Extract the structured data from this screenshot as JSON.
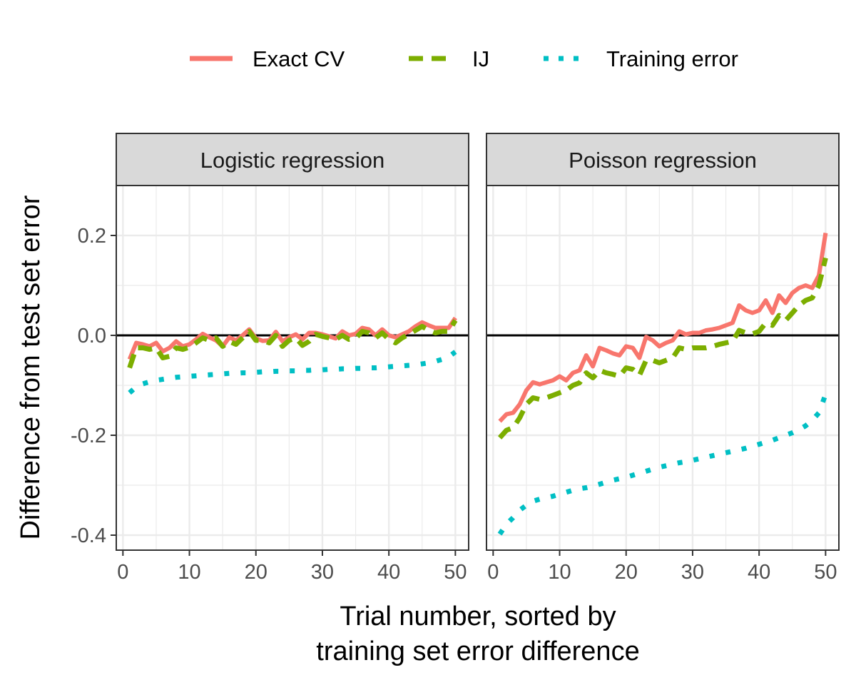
{
  "chart_data": {
    "type": "line",
    "xlabel_lines": [
      "Trial number, sorted by",
      "training set error difference"
    ],
    "ylabel": "Difference from test set error",
    "legend": {
      "placement": "top",
      "entries": [
        {
          "label": "Exact CV",
          "color": "#F8766D",
          "dash": "solid"
        },
        {
          "label": "IJ",
          "color": "#7CAE00",
          "dash": "dashed"
        },
        {
          "label": "Training error",
          "color": "#00BFC4",
          "dash": "dotted"
        }
      ]
    },
    "xlim": [
      -1,
      52
    ],
    "ylim": [
      -0.43,
      0.3
    ],
    "xticks": [
      0,
      10,
      20,
      30,
      40,
      50
    ],
    "yticks": [
      -0.4,
      -0.2,
      0.0,
      0.2
    ],
    "ytick_labels": [
      "-0.4",
      "-0.2",
      "0.0",
      "0.2"
    ],
    "hline": 0.0,
    "grid": true,
    "panels": [
      {
        "title": "Logistic regression",
        "x": [
          1,
          2,
          3,
          4,
          5,
          6,
          7,
          8,
          9,
          10,
          11,
          12,
          13,
          14,
          15,
          16,
          17,
          18,
          19,
          20,
          21,
          22,
          23,
          24,
          25,
          26,
          27,
          28,
          29,
          30,
          31,
          32,
          33,
          34,
          35,
          36,
          37,
          38,
          39,
          40,
          41,
          42,
          43,
          44,
          45,
          46,
          47,
          48,
          49,
          50
        ],
        "series": [
          {
            "name": "Exact CV",
            "values": [
              -0.048,
              -0.015,
              -0.018,
              -0.022,
              -0.015,
              -0.032,
              -0.025,
              -0.012,
              -0.022,
              -0.018,
              -0.008,
              0.003,
              -0.004,
              -0.01,
              -0.022,
              -0.004,
              -0.01,
              0.0,
              0.012,
              -0.006,
              -0.011,
              -0.01,
              0.007,
              -0.012,
              -0.004,
              0.002,
              -0.008,
              0.005,
              0.005,
              0.002,
              -0.002,
              -0.006,
              0.008,
              0.0,
              0.003,
              0.015,
              0.012,
              0.0,
              0.012,
              0.0,
              -0.004,
              0.002,
              0.008,
              0.018,
              0.026,
              0.02,
              0.015,
              0.015,
              0.015,
              0.035
            ]
          },
          {
            "name": "IJ",
            "values": [
              -0.065,
              -0.025,
              -0.025,
              -0.028,
              -0.025,
              -0.045,
              -0.042,
              -0.025,
              -0.028,
              -0.024,
              -0.015,
              -0.005,
              -0.01,
              -0.005,
              -0.022,
              -0.012,
              -0.018,
              -0.005,
              0.008,
              -0.01,
              -0.01,
              -0.015,
              0.0,
              -0.022,
              -0.01,
              -0.005,
              -0.02,
              -0.012,
              0.002,
              -0.002,
              -0.005,
              -0.008,
              0.0,
              -0.008,
              -0.006,
              0.008,
              0.005,
              -0.005,
              0.005,
              -0.008,
              -0.015,
              -0.005,
              0.002,
              0.01,
              0.018,
              0.01,
              0.005,
              0.008,
              0.008,
              0.03
            ]
          },
          {
            "name": "Training error",
            "values": [
              -0.115,
              -0.103,
              -0.097,
              -0.093,
              -0.09,
              -0.088,
              -0.086,
              -0.084,
              -0.083,
              -0.082,
              -0.081,
              -0.08,
              -0.079,
              -0.078,
              -0.077,
              -0.076,
              -0.076,
              -0.075,
              -0.075,
              -0.074,
              -0.073,
              -0.073,
              -0.072,
              -0.072,
              -0.071,
              -0.071,
              -0.07,
              -0.07,
              -0.069,
              -0.069,
              -0.068,
              -0.068,
              -0.067,
              -0.067,
              -0.066,
              -0.066,
              -0.065,
              -0.065,
              -0.064,
              -0.063,
              -0.062,
              -0.061,
              -0.06,
              -0.059,
              -0.057,
              -0.055,
              -0.052,
              -0.048,
              -0.043,
              -0.033
            ]
          }
        ]
      },
      {
        "title": "Poisson regression",
        "x": [
          1,
          2,
          3,
          4,
          5,
          6,
          7,
          8,
          9,
          10,
          11,
          12,
          13,
          14,
          15,
          16,
          17,
          18,
          19,
          20,
          21,
          22,
          23,
          24,
          25,
          26,
          27,
          28,
          29,
          30,
          31,
          32,
          33,
          34,
          35,
          36,
          37,
          38,
          39,
          40,
          41,
          42,
          43,
          44,
          45,
          46,
          47,
          48,
          49,
          50
        ],
        "series": [
          {
            "name": "Exact CV",
            "values": [
              -0.172,
              -0.158,
              -0.155,
              -0.138,
              -0.11,
              -0.094,
              -0.098,
              -0.094,
              -0.09,
              -0.082,
              -0.09,
              -0.075,
              -0.07,
              -0.04,
              -0.062,
              -0.025,
              -0.03,
              -0.036,
              -0.04,
              -0.022,
              -0.025,
              -0.045,
              -0.003,
              -0.01,
              -0.022,
              -0.015,
              -0.01,
              0.008,
              0.002,
              0.005,
              0.005,
              0.01,
              0.012,
              0.015,
              0.02,
              0.025,
              0.06,
              0.05,
              0.045,
              0.05,
              0.07,
              0.045,
              0.08,
              0.065,
              0.085,
              0.095,
              0.1,
              0.095,
              0.12,
              0.205
            ]
          },
          {
            "name": "IJ",
            "values": [
              -0.205,
              -0.19,
              -0.185,
              -0.165,
              -0.138,
              -0.125,
              -0.128,
              -0.125,
              -0.12,
              -0.115,
              -0.11,
              -0.1,
              -0.095,
              -0.075,
              -0.085,
              -0.07,
              -0.075,
              -0.078,
              -0.082,
              -0.065,
              -0.068,
              -0.08,
              -0.05,
              -0.05,
              -0.055,
              -0.05,
              -0.045,
              -0.025,
              -0.028,
              -0.025,
              -0.025,
              -0.025,
              -0.022,
              -0.018,
              -0.015,
              -0.012,
              0.01,
              0.005,
              0.003,
              0.008,
              0.025,
              0.02,
              0.04,
              0.03,
              0.045,
              0.06,
              0.07,
              0.075,
              0.1,
              0.155
            ]
          },
          {
            "name": "Training error",
            "values": [
              -0.398,
              -0.378,
              -0.365,
              -0.35,
              -0.34,
              -0.332,
              -0.328,
              -0.325,
              -0.322,
              -0.318,
              -0.314,
              -0.31,
              -0.307,
              -0.305,
              -0.302,
              -0.298,
              -0.294,
              -0.29,
              -0.287,
              -0.284,
              -0.28,
              -0.276,
              -0.272,
              -0.268,
              -0.264,
              -0.261,
              -0.258,
              -0.255,
              -0.253,
              -0.25,
              -0.247,
              -0.244,
              -0.241,
              -0.238,
              -0.235,
              -0.232,
              -0.229,
              -0.226,
              -0.222,
              -0.218,
              -0.214,
              -0.21,
              -0.205,
              -0.2,
              -0.195,
              -0.189,
              -0.181,
              -0.17,
              -0.155,
              -0.118
            ]
          }
        ]
      }
    ]
  }
}
